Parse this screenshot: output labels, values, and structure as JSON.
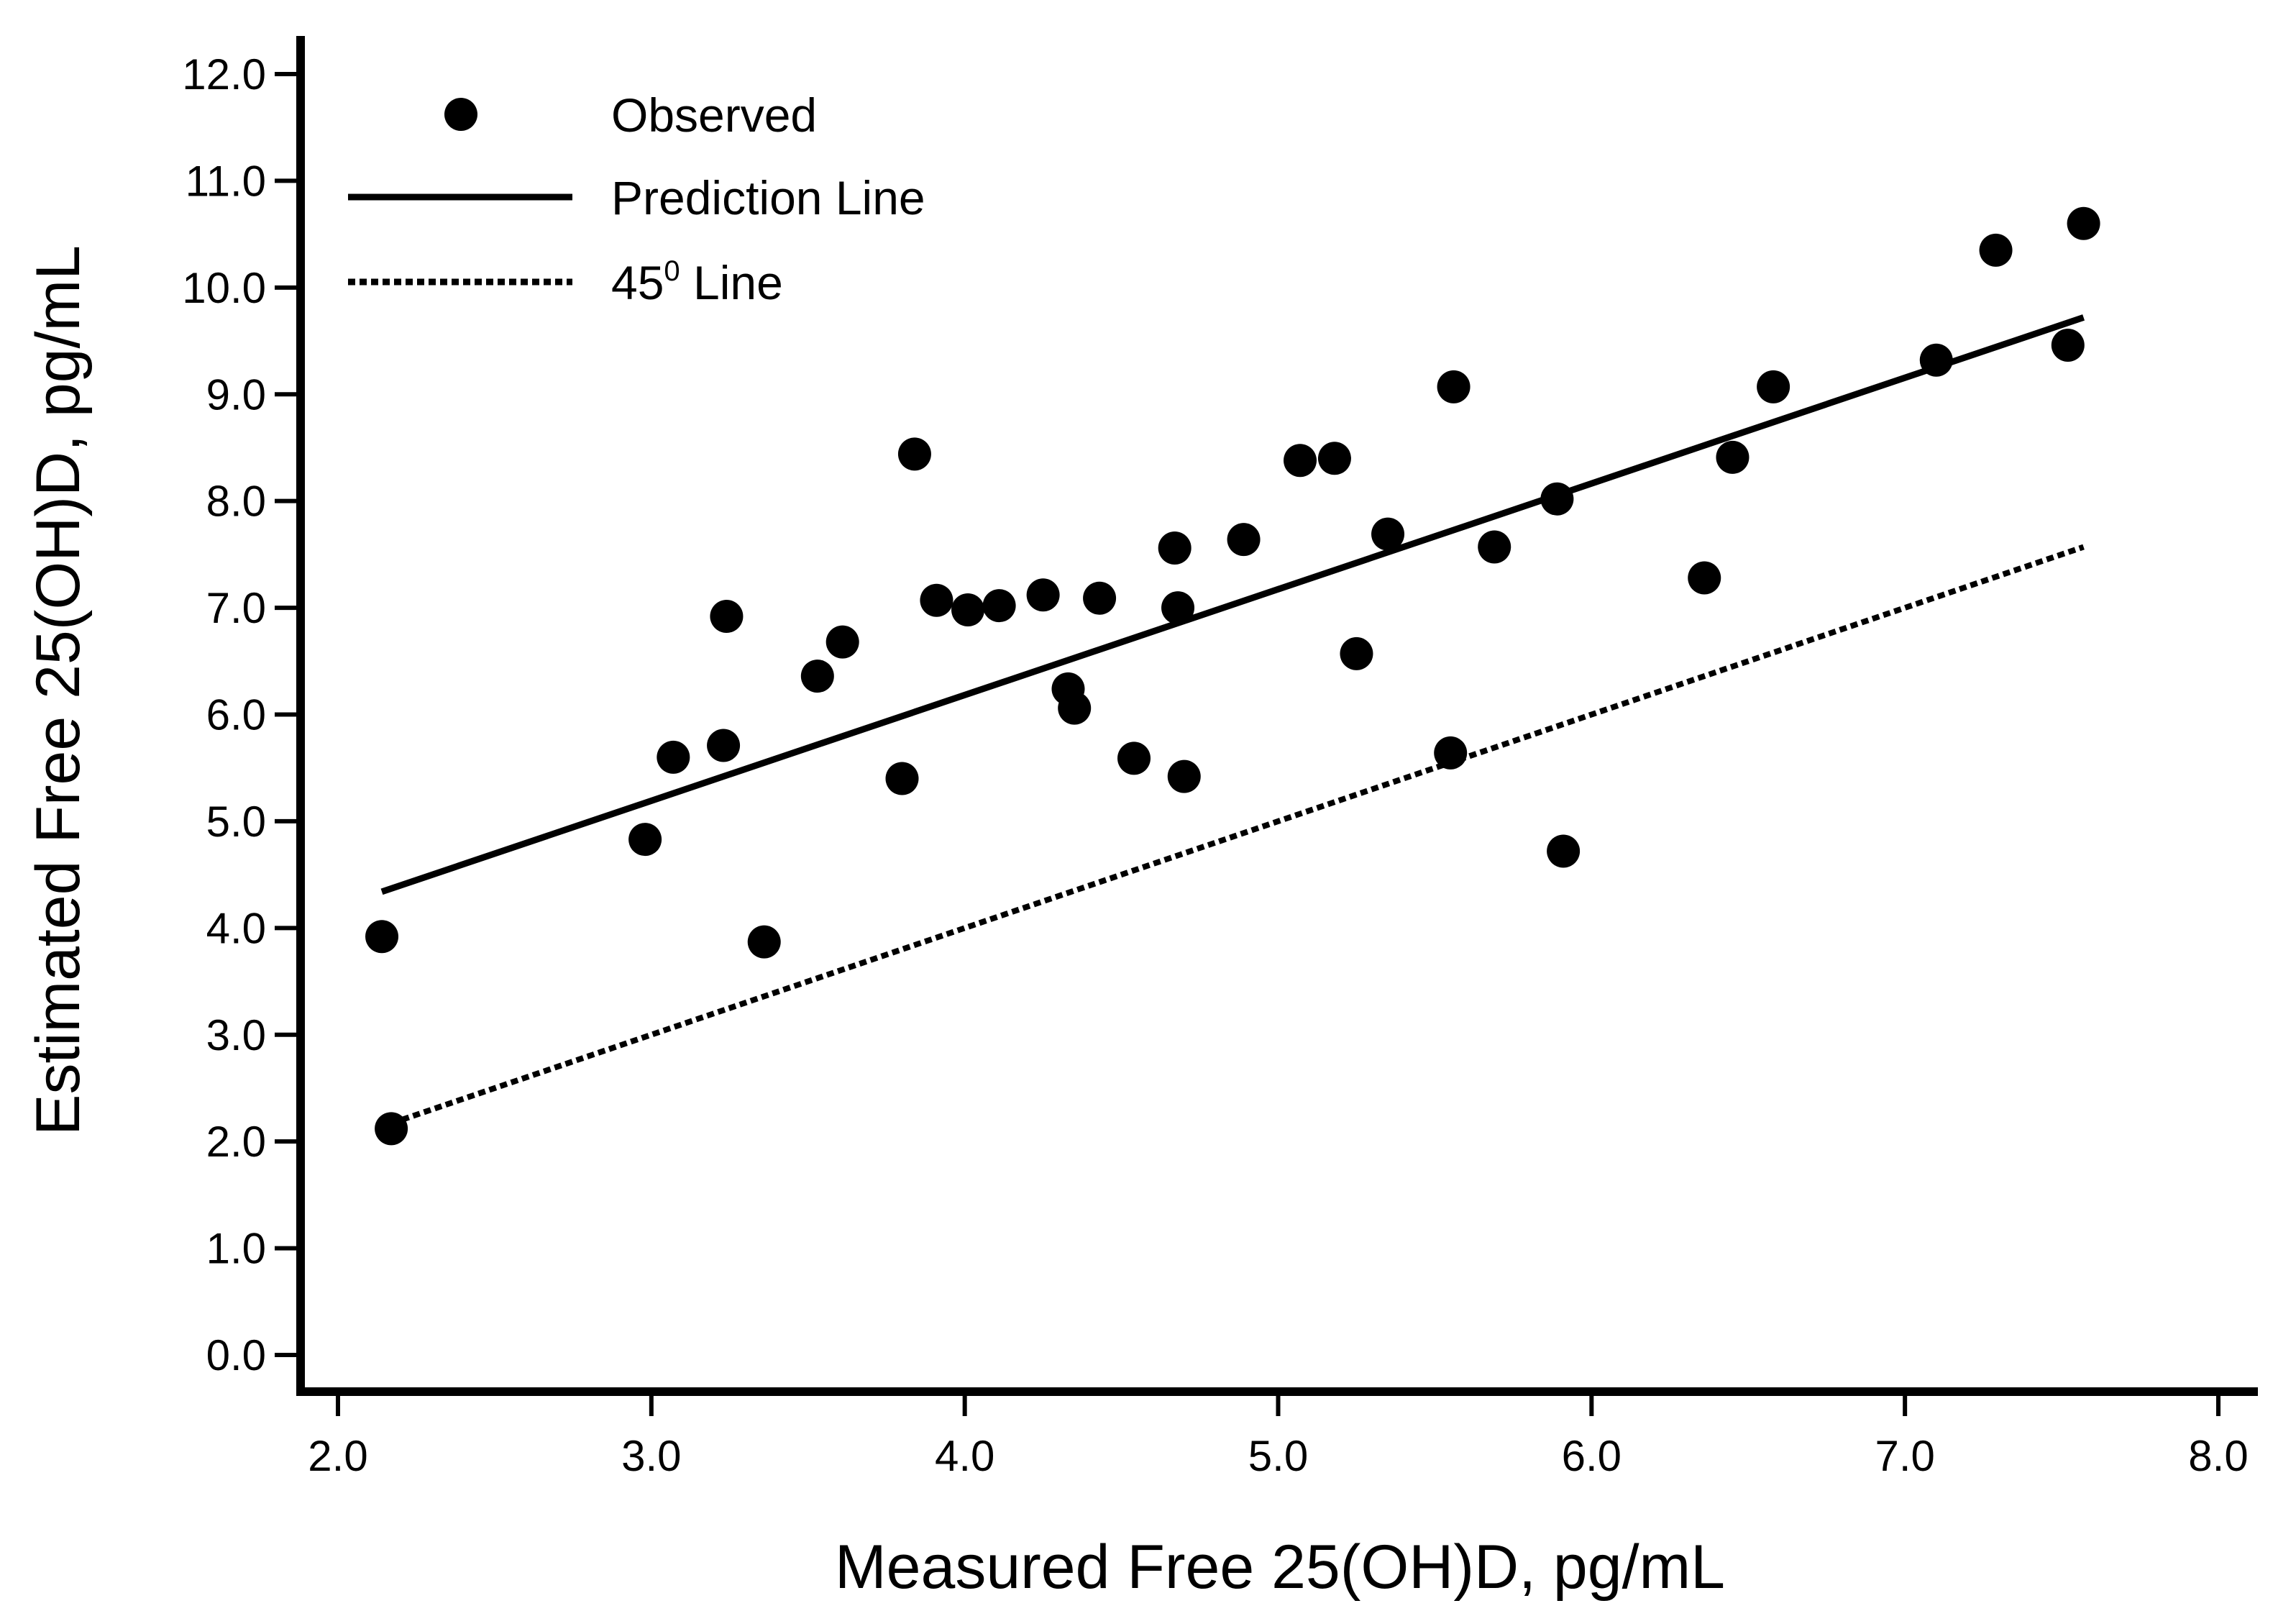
{
  "chart_data": {
    "type": "scatter",
    "title": "",
    "xlabel": "Measured Free 25(OH)D, pg/mL",
    "ylabel": "Estimated Free 25(OH)D, pg/mL",
    "xlim": [
      2.0,
      8.0
    ],
    "ylim": [
      0.0,
      12.0
    ],
    "xticks": [
      "2.0",
      "3.0",
      "4.0",
      "5.0",
      "6.0",
      "7.0",
      "8.0"
    ],
    "yticks": [
      "0.0",
      "1.0",
      "2.0",
      "3.0",
      "4.0",
      "5.0",
      "6.0",
      "7.0",
      "8.0",
      "9.0",
      "10.0",
      "11.0",
      "12.0"
    ],
    "grid": false,
    "legend_position": "top-left",
    "legend": {
      "observed": "Observed",
      "prediction": "Prediction Line",
      "line45_prefix": "45",
      "line45_sup": "0",
      "line45_suffix": " Line"
    },
    "series": [
      {
        "name": "Observed",
        "kind": "points",
        "points": [
          [
            2.14,
            3.92
          ],
          [
            2.17,
            2.12
          ],
          [
            2.98,
            4.83
          ],
          [
            3.07,
            5.6
          ],
          [
            3.23,
            5.71
          ],
          [
            3.24,
            6.92
          ],
          [
            3.36,
            3.87
          ],
          [
            3.53,
            6.36
          ],
          [
            3.61,
            6.68
          ],
          [
            3.8,
            5.4
          ],
          [
            3.84,
            8.44
          ],
          [
            3.91,
            7.07
          ],
          [
            4.01,
            6.98
          ],
          [
            4.11,
            7.02
          ],
          [
            4.25,
            7.12
          ],
          [
            4.33,
            6.24
          ],
          [
            4.35,
            6.06
          ],
          [
            4.43,
            7.09
          ],
          [
            4.54,
            5.59
          ],
          [
            4.67,
            7.56
          ],
          [
            4.68,
            7.0
          ],
          [
            4.7,
            5.42
          ],
          [
            4.89,
            7.64
          ],
          [
            5.07,
            8.38
          ],
          [
            5.18,
            8.4
          ],
          [
            5.25,
            6.57
          ],
          [
            5.35,
            7.69
          ],
          [
            5.55,
            5.64
          ],
          [
            5.56,
            9.07
          ],
          [
            5.69,
            7.57
          ],
          [
            5.89,
            8.02
          ],
          [
            5.91,
            4.72
          ],
          [
            6.36,
            7.28
          ],
          [
            6.45,
            8.41
          ],
          [
            6.58,
            9.07
          ],
          [
            7.1,
            9.32
          ],
          [
            7.29,
            10.35
          ],
          [
            7.52,
            9.46
          ],
          [
            7.57,
            10.6
          ]
        ]
      },
      {
        "name": "Prediction Line",
        "kind": "solid-line",
        "x": [
          2.14,
          7.57
        ],
        "y": [
          4.34,
          9.72
        ]
      },
      {
        "name": "45 Line",
        "kind": "dotted-line",
        "x": [
          2.17,
          7.57
        ],
        "y": [
          2.17,
          7.57
        ]
      }
    ]
  }
}
